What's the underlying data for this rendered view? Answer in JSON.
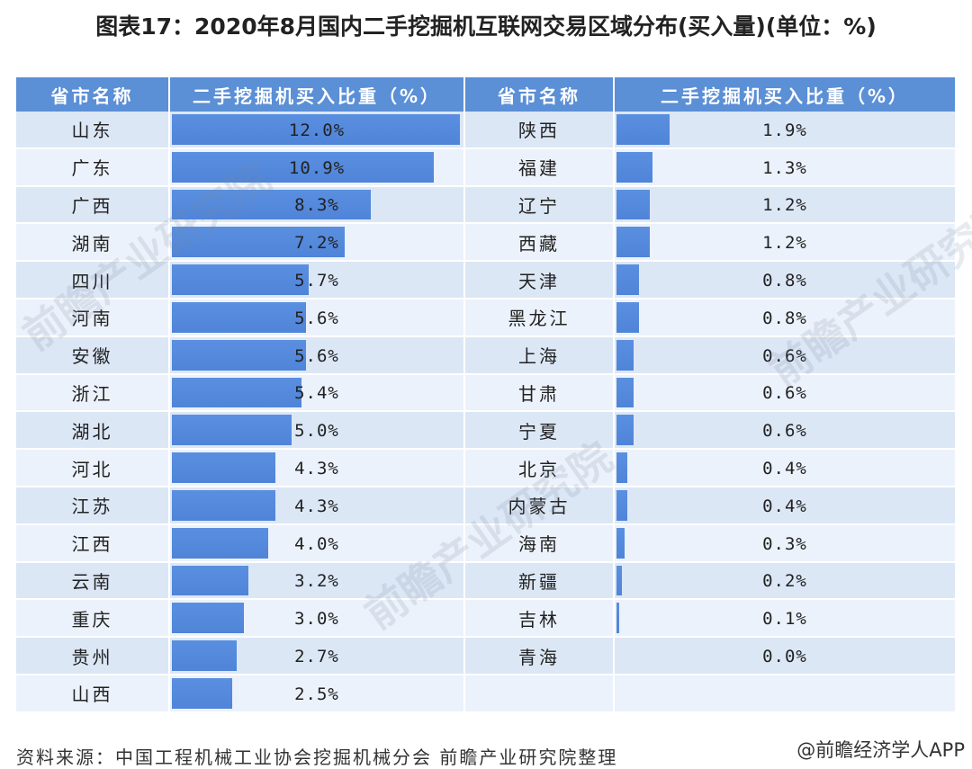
{
  "title": "图表17：2020年8月国内二手挖掘机互联网交易区域分布(买入量)(单位：%)",
  "headers": [
    "省市名称",
    "二手挖掘机买入比重（%）",
    "省市名称",
    "二手挖掘机买入比重（%）"
  ],
  "footer": {
    "source": "资料来源：中国工程机械工业协会挖掘机械分会 前瞻产业研究院整理",
    "credit": "@前瞻经济学人APP"
  },
  "watermark": "前瞻产业研究院",
  "colors": {
    "header": "#5b8fd6",
    "bar": "#5a8fe0",
    "row_dark": "#dce7f6",
    "row_light": "#ecf2fb"
  },
  "chart_data": {
    "type": "table",
    "max_value": 12.0,
    "left": [
      {
        "province": "山东",
        "value": 12.0,
        "label": "12.0%"
      },
      {
        "province": "广东",
        "value": 10.9,
        "label": "10.9%"
      },
      {
        "province": "广西",
        "value": 8.3,
        "label": "8.3%"
      },
      {
        "province": "湖南",
        "value": 7.2,
        "label": "7.2%"
      },
      {
        "province": "四川",
        "value": 5.7,
        "label": "5.7%"
      },
      {
        "province": "河南",
        "value": 5.6,
        "label": "5.6%"
      },
      {
        "province": "安徽",
        "value": 5.6,
        "label": "5.6%"
      },
      {
        "province": "浙江",
        "value": 5.4,
        "label": "5.4%"
      },
      {
        "province": "湖北",
        "value": 5.0,
        "label": "5.0%"
      },
      {
        "province": "河北",
        "value": 4.3,
        "label": "4.3%"
      },
      {
        "province": "江苏",
        "value": 4.3,
        "label": "4.3%"
      },
      {
        "province": "江西",
        "value": 4.0,
        "label": "4.0%"
      },
      {
        "province": "云南",
        "value": 3.2,
        "label": "3.2%"
      },
      {
        "province": "重庆",
        "value": 3.0,
        "label": "3.0%"
      },
      {
        "province": "贵州",
        "value": 2.7,
        "label": "2.7%"
      },
      {
        "province": "山西",
        "value": 2.5,
        "label": "2.5%"
      }
    ],
    "right": [
      {
        "province": "陕西",
        "value": 1.9,
        "label": "1.9%"
      },
      {
        "province": "福建",
        "value": 1.3,
        "label": "1.3%"
      },
      {
        "province": "辽宁",
        "value": 1.2,
        "label": "1.2%"
      },
      {
        "province": "西藏",
        "value": 1.2,
        "label": "1.2%"
      },
      {
        "province": "天津",
        "value": 0.8,
        "label": "0.8%"
      },
      {
        "province": "黑龙江",
        "value": 0.8,
        "label": "0.8%"
      },
      {
        "province": "上海",
        "value": 0.6,
        "label": "0.6%"
      },
      {
        "province": "甘肃",
        "value": 0.6,
        "label": "0.6%"
      },
      {
        "province": "宁夏",
        "value": 0.6,
        "label": "0.6%"
      },
      {
        "province": "北京",
        "value": 0.4,
        "label": "0.4%"
      },
      {
        "province": "内蒙古",
        "value": 0.4,
        "label": "0.4%"
      },
      {
        "province": "海南",
        "value": 0.3,
        "label": "0.3%"
      },
      {
        "province": "新疆",
        "value": 0.2,
        "label": "0.2%"
      },
      {
        "province": "吉林",
        "value": 0.1,
        "label": "0.1%"
      },
      {
        "province": "青海",
        "value": 0.0,
        "label": "0.0%"
      }
    ]
  }
}
